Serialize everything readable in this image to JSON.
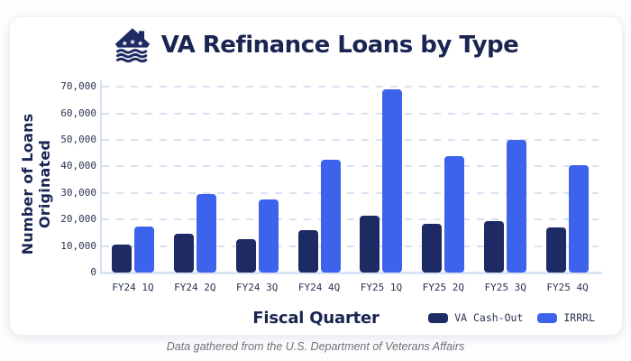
{
  "header": {
    "title": "VA Refinance Loans by Type",
    "icon": "va-house-stripes-icon"
  },
  "chart_data": {
    "type": "bar",
    "title": "VA Refinance Loans by Type",
    "xlabel": "Fiscal Quarter",
    "ylabel": "Number of Loans Originated",
    "categories": [
      "FY24 1Q",
      "FY24 2Q",
      "FY24 3Q",
      "FY24 4Q",
      "FY25 1Q",
      "FY25 2Q",
      "FY25 3Q",
      "FY25 4Q"
    ],
    "series": [
      {
        "name": "VA Cash-Out",
        "color": "#1e2a64",
        "values": [
          10500,
          14500,
          12500,
          16000,
          21500,
          18500,
          19500,
          17000
        ]
      },
      {
        "name": "IRRRL",
        "color": "#3d63ed",
        "values": [
          17500,
          29500,
          27500,
          42500,
          69000,
          44000,
          50000,
          40500
        ]
      }
    ],
    "ylim": [
      0,
      72500
    ],
    "yticks": [
      0,
      10000,
      20000,
      30000,
      40000,
      50000,
      60000,
      70000
    ],
    "ytick_labels": [
      "0",
      "10,000",
      "20,000",
      "30,000",
      "40,000",
      "50,000",
      "60,000",
      "70,000"
    ],
    "grid": "horizontal-dashed",
    "legend_position": "bottom-right"
  },
  "footer": {
    "note": "Data gathered from the U.S. Department of Veterans Affairs"
  },
  "colors": {
    "navy": "#1e2a64",
    "blue": "#3d63ed",
    "heading_text": "#1b2552",
    "tick_text": "#2b3452",
    "gridline": "#d9e1f2",
    "axis_line": "#d7e1f3",
    "footer_text": "#6e7178",
    "card_background": "#ffffff"
  }
}
